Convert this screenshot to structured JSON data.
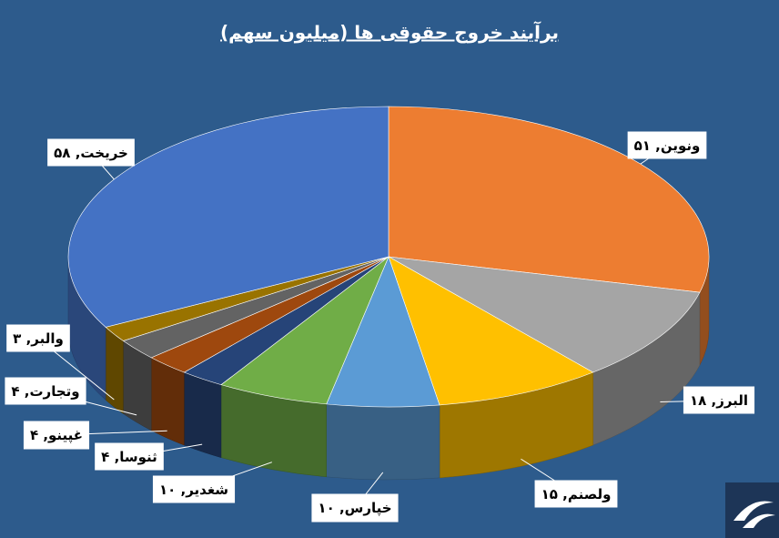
{
  "chart_data": {
    "type": "pie3d",
    "title": "برآیند خروج حقوقی ها (میلیون سهم)",
    "categories": [
      "ونوین",
      "البرز",
      "ولصنم",
      "خپارس",
      "شغدیر",
      "ثنوسا",
      "غپینو",
      "وتجارت",
      "والبر",
      "خریخت"
    ],
    "values": [
      51,
      18,
      15,
      10,
      10,
      4,
      4,
      4,
      3,
      58
    ],
    "value_labels": [
      "۵۱",
      "۱۸",
      "۱۵",
      "۱۰",
      "۱۰",
      "۴",
      "۴",
      "۴",
      "۳",
      "۵۸"
    ],
    "label_separator": ",",
    "colors": [
      "#ed7d31",
      "#a5a5a5",
      "#ffc000",
      "#5b9bd5",
      "#70ad47",
      "#264478",
      "#9e480e",
      "#636363",
      "#997300",
      "#4472c4"
    ]
  }
}
